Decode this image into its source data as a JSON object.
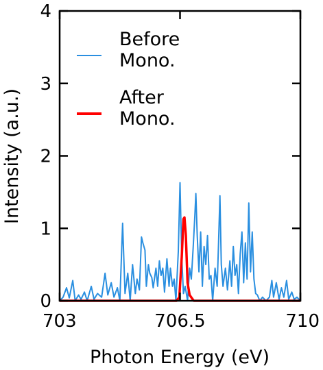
{
  "chart_data": {
    "type": "line",
    "xlabel": "Photon Energy (eV)",
    "ylabel": "Intensity (a.u.)",
    "xlim": [
      703,
      710
    ],
    "ylim": [
      0,
      4
    ],
    "x_ticks": [
      703,
      706.5,
      710
    ],
    "x_tick_labels": [
      "703",
      "706.5",
      "710"
    ],
    "y_ticks": [
      0,
      1,
      2,
      3,
      4
    ],
    "y_tick_labels": [
      "0",
      "1",
      "2",
      "3",
      "4"
    ],
    "legend": {
      "placement": "top-left",
      "entries": [
        {
          "lines": [
            "Before",
            "Mono."
          ],
          "color": "#2a8fe0"
        },
        {
          "lines": [
            "After",
            "Mono."
          ],
          "color": "#ff0000"
        }
      ]
    },
    "series": [
      {
        "color": "#2a8fe0",
        "points": [
          [
            703.0,
            0.0
          ],
          [
            703.1,
            0.05
          ],
          [
            703.2,
            0.18
          ],
          [
            703.28,
            0.04
          ],
          [
            703.38,
            0.28
          ],
          [
            703.45,
            0.0
          ],
          [
            703.55,
            0.08
          ],
          [
            703.62,
            0.02
          ],
          [
            703.72,
            0.12
          ],
          [
            703.8,
            0.0
          ],
          [
            703.92,
            0.2
          ],
          [
            704.0,
            0.02
          ],
          [
            704.1,
            0.1
          ],
          [
            704.22,
            0.05
          ],
          [
            704.32,
            0.38
          ],
          [
            704.4,
            0.08
          ],
          [
            704.5,
            0.25
          ],
          [
            704.58,
            0.05
          ],
          [
            704.68,
            0.18
          ],
          [
            704.75,
            0.0
          ],
          [
            704.83,
            1.07
          ],
          [
            704.9,
            0.1
          ],
          [
            704.98,
            0.38
          ],
          [
            705.05,
            0.0
          ],
          [
            705.12,
            0.5
          ],
          [
            705.2,
            0.1
          ],
          [
            705.25,
            0.3
          ],
          [
            705.32,
            0.15
          ],
          [
            705.38,
            0.88
          ],
          [
            705.42,
            0.8
          ],
          [
            705.48,
            0.7
          ],
          [
            705.52,
            0.2
          ],
          [
            705.58,
            0.5
          ],
          [
            705.62,
            0.38
          ],
          [
            705.68,
            0.32
          ],
          [
            705.72,
            0.18
          ],
          [
            705.8,
            0.45
          ],
          [
            705.85,
            0.2
          ],
          [
            705.9,
            0.55
          ],
          [
            705.95,
            0.35
          ],
          [
            706.0,
            0.45
          ],
          [
            706.05,
            0.12
          ],
          [
            706.12,
            0.58
          ],
          [
            706.18,
            0.2
          ],
          [
            706.22,
            0.45
          ],
          [
            706.28,
            0.2
          ],
          [
            706.33,
            0.3
          ],
          [
            706.38,
            0.0
          ],
          [
            706.45,
            0.68
          ],
          [
            706.5,
            1.63
          ],
          [
            706.55,
            0.6
          ],
          [
            706.6,
            0.1
          ],
          [
            706.65,
            0.2
          ],
          [
            706.72,
            0.0
          ],
          [
            706.78,
            0.45
          ],
          [
            706.83,
            0.3
          ],
          [
            706.88,
            0.72
          ],
          [
            706.93,
            1.17
          ],
          [
            706.96,
            1.48
          ],
          [
            707.0,
            0.9
          ],
          [
            707.05,
            0.4
          ],
          [
            707.1,
            0.95
          ],
          [
            707.15,
            0.2
          ],
          [
            707.2,
            0.75
          ],
          [
            707.25,
            0.5
          ],
          [
            707.3,
            0.9
          ],
          [
            707.35,
            0.3
          ],
          [
            707.4,
            0.35
          ],
          [
            707.45,
            0.0
          ],
          [
            707.52,
            0.45
          ],
          [
            707.58,
            0.2
          ],
          [
            707.62,
            0.8
          ],
          [
            707.66,
            1.45
          ],
          [
            707.7,
            0.5
          ],
          [
            707.75,
            0.2
          ],
          [
            707.82,
            0.45
          ],
          [
            707.88,
            0.15
          ],
          [
            707.95,
            0.55
          ],
          [
            708.0,
            0.2
          ],
          [
            708.05,
            0.75
          ],
          [
            708.1,
            0.35
          ],
          [
            708.15,
            0.5
          ],
          [
            708.2,
            0.1
          ],
          [
            708.25,
            0.65
          ],
          [
            708.3,
            0.95
          ],
          [
            708.35,
            0.25
          ],
          [
            708.4,
            0.8
          ],
          [
            708.45,
            0.3
          ],
          [
            708.5,
            1.35
          ],
          [
            708.55,
            0.4
          ],
          [
            708.6,
            0.95
          ],
          [
            708.65,
            0.3
          ],
          [
            708.7,
            0.1
          ],
          [
            708.75,
            0.08
          ],
          [
            708.82,
            0.0
          ],
          [
            708.9,
            0.05
          ],
          [
            709.0,
            0.0
          ],
          [
            709.1,
            0.05
          ],
          [
            709.17,
            0.28
          ],
          [
            709.22,
            0.05
          ],
          [
            709.3,
            0.25
          ],
          [
            709.38,
            0.02
          ],
          [
            709.45,
            0.18
          ],
          [
            709.52,
            0.05
          ],
          [
            709.6,
            0.28
          ],
          [
            709.66,
            0.02
          ],
          [
            709.75,
            0.12
          ],
          [
            709.82,
            0.02
          ],
          [
            709.9,
            0.05
          ],
          [
            710.0,
            0.0
          ]
        ]
      },
      {
        "color": "#ff0000",
        "points": [
          [
            703.0,
            0.0
          ],
          [
            706.3,
            0.0
          ],
          [
            706.4,
            0.0
          ],
          [
            706.48,
            0.05
          ],
          [
            706.55,
            0.6
          ],
          [
            706.6,
            1.13
          ],
          [
            706.63,
            1.15
          ],
          [
            706.67,
            0.9
          ],
          [
            706.72,
            0.25
          ],
          [
            706.78,
            0.08
          ],
          [
            706.84,
            0.04
          ],
          [
            706.9,
            0.0
          ],
          [
            710.0,
            0.0
          ]
        ]
      }
    ]
  }
}
